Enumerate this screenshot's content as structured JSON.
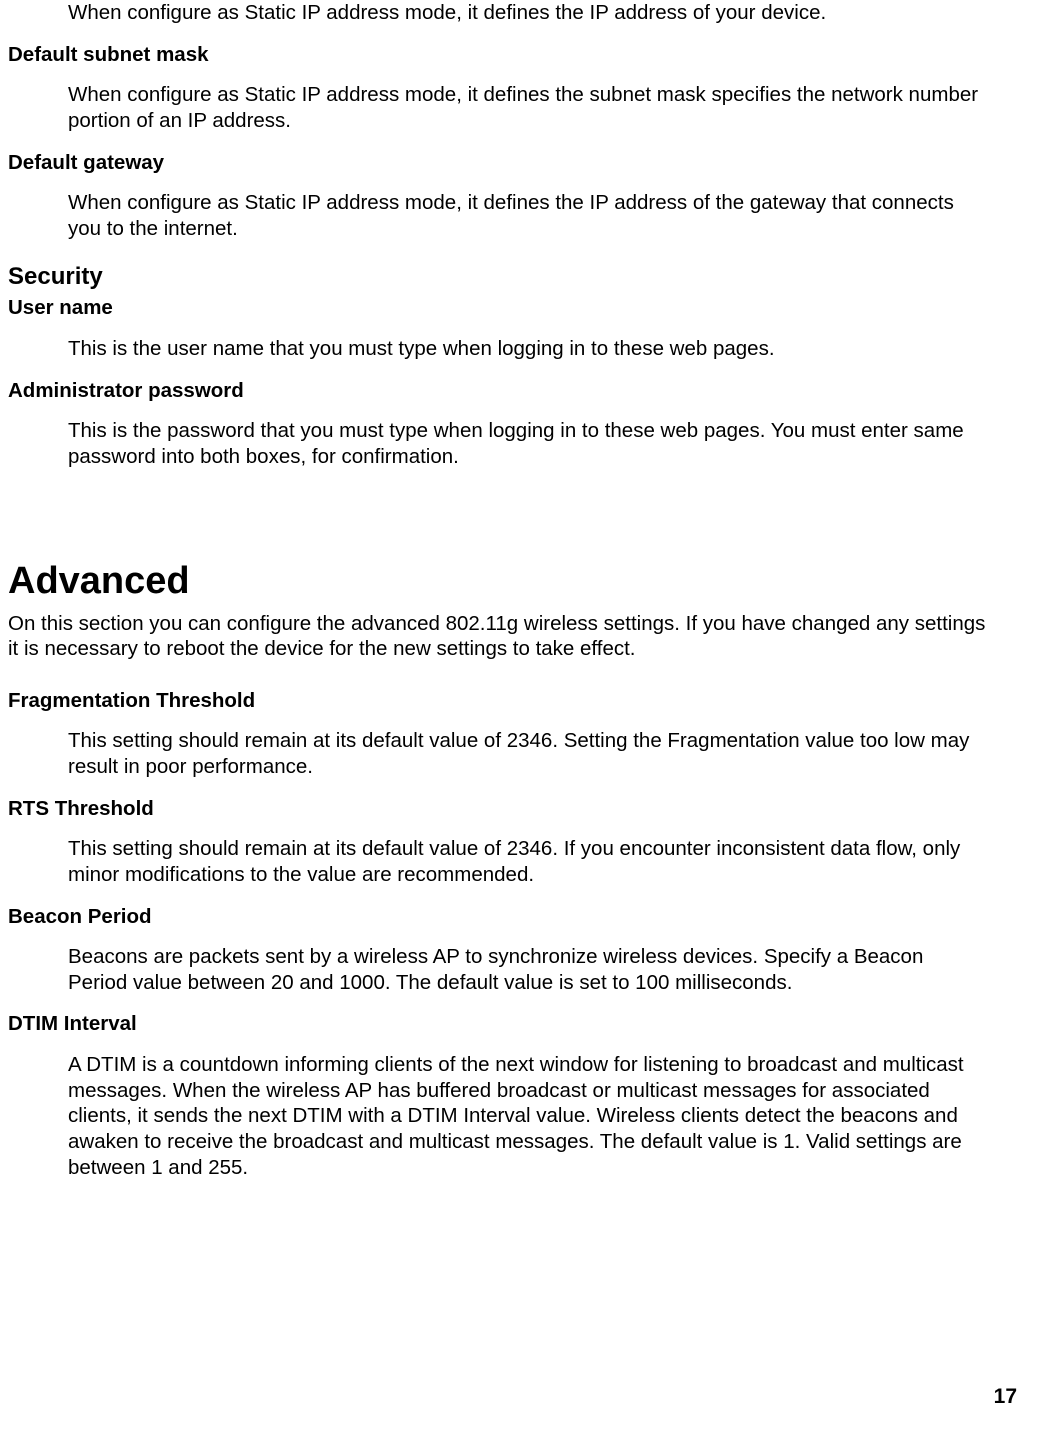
{
  "top": {
    "ip_address_desc": "When configure as Static IP address mode, it defines the IP address of your device.",
    "subnet_mask_label": "Default subnet mask",
    "subnet_mask_desc": "When configure as Static IP address mode, it defines the subnet mask specifies the network number portion of an IP address.",
    "gateway_label": "Default gateway",
    "gateway_desc": "When configure as Static IP address mode, it defines the IP address of the gateway that connects you to the internet."
  },
  "security": {
    "heading": "Security",
    "username_label": "User name",
    "username_desc": "This is the user name that you must type when logging in to these web pages.",
    "admin_password_label": "Administrator password",
    "admin_password_desc": "This is the password that you must type when logging in to these web pages. You must enter same password into both boxes, for confirmation."
  },
  "advanced": {
    "heading": "Advanced",
    "intro": "On this section you can configure the advanced 802.11g wireless settings. If you have changed any settings it is necessary to reboot the device for the new settings to take effect.",
    "frag_label": "Fragmentation Threshold",
    "frag_desc": "This setting should remain at its default value of 2346. Setting the Fragmentation value too low may result in poor performance.",
    "rts_label": "RTS Threshold",
    "rts_desc": "This setting should remain at its default value of 2346. If you encounter inconsistent data flow, only minor modifications to the value are recommended.",
    "beacon_label": "Beacon Period",
    "beacon_desc": "Beacons are packets sent by a wireless AP to synchronize wireless devices. Specify a Beacon Period value between 20 and 1000. The default value is set to 100 milliseconds.",
    "dtim_label": "DTIM Interval",
    "dtim_desc": "A DTIM is a countdown informing clients of the next window for listening to broadcast and multicast messages. When the wireless AP has buffered broadcast or multicast messages for associated clients, it sends the next DTIM with a DTIM Interval value. Wireless clients detect the beacons and awaken to receive the broadcast and multicast messages. The default value is 1. Valid settings are between 1 and 255."
  },
  "page_number": "17"
}
